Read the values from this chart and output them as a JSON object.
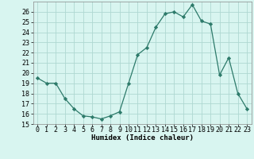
{
  "x": [
    0,
    1,
    2,
    3,
    4,
    5,
    6,
    7,
    8,
    9,
    10,
    11,
    12,
    13,
    14,
    15,
    16,
    17,
    18,
    19,
    20,
    21,
    22,
    23
  ],
  "y": [
    19.5,
    19.0,
    19.0,
    17.5,
    16.5,
    15.8,
    15.7,
    15.5,
    15.8,
    16.2,
    19.0,
    21.8,
    22.5,
    24.5,
    25.8,
    26.0,
    25.5,
    26.7,
    25.1,
    24.8,
    19.8,
    21.5,
    18.0,
    16.5
  ],
  "line_color": "#2d7a6a",
  "marker": "D",
  "marker_size": 2.2,
  "bg_color": "#d8f5f0",
  "grid_color": "#afd8d2",
  "xlabel": "Humidex (Indice chaleur)",
  "ylabel": "",
  "xlim": [
    -0.5,
    23.5
  ],
  "ylim": [
    15,
    27
  ],
  "yticks": [
    15,
    16,
    17,
    18,
    19,
    20,
    21,
    22,
    23,
    24,
    25,
    26
  ],
  "xticks": [
    0,
    1,
    2,
    3,
    4,
    5,
    6,
    7,
    8,
    9,
    10,
    11,
    12,
    13,
    14,
    15,
    16,
    17,
    18,
    19,
    20,
    21,
    22,
    23
  ],
  "label_fontsize": 6.5,
  "tick_fontsize": 6.0
}
